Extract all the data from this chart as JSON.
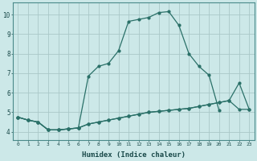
{
  "xlabel": "Humidex (Indice chaleur)",
  "bg_color": "#cce8e8",
  "grid_color": "#aac8c8",
  "line_color": "#2a7068",
  "xlim": [
    -0.5,
    23.5
  ],
  "ylim": [
    3.6,
    10.6
  ],
  "xticks": [
    0,
    1,
    2,
    3,
    4,
    5,
    6,
    7,
    8,
    9,
    10,
    11,
    12,
    13,
    14,
    15,
    16,
    17,
    18,
    19,
    20,
    21,
    22,
    23
  ],
  "yticks": [
    4,
    5,
    6,
    7,
    8,
    9,
    10
  ],
  "curve_bottom_x": [
    0,
    1,
    2,
    3,
    4,
    5,
    6,
    7,
    8,
    9,
    10,
    11,
    12,
    13,
    14,
    15,
    16,
    17,
    18,
    19,
    20,
    21,
    22,
    23
  ],
  "curve_bottom_y": [
    4.75,
    4.6,
    4.5,
    4.1,
    4.1,
    4.15,
    4.2,
    4.4,
    4.5,
    4.6,
    4.7,
    4.8,
    4.9,
    5.0,
    5.05,
    5.1,
    5.15,
    5.2,
    5.3,
    5.4,
    5.5,
    5.6,
    5.15,
    5.15
  ],
  "curve_mid_x": [
    0,
    1,
    2,
    3,
    4,
    5,
    6,
    7,
    8,
    9,
    10,
    11,
    12,
    13,
    14,
    15,
    16,
    17,
    18,
    19,
    20,
    21,
    22,
    23
  ],
  "curve_mid_y": [
    4.75,
    4.6,
    4.5,
    4.1,
    4.1,
    4.15,
    4.2,
    4.4,
    4.5,
    4.6,
    4.7,
    4.8,
    4.9,
    5.0,
    5.05,
    5.1,
    5.15,
    5.2,
    5.3,
    5.4,
    5.5,
    5.6,
    6.5,
    5.15
  ],
  "curve_top_x": [
    0,
    1,
    2,
    3,
    4,
    5,
    6,
    7,
    8,
    9,
    10,
    11,
    12,
    13,
    14,
    15,
    16,
    17,
    18,
    19,
    20
  ],
  "curve_top_y": [
    4.75,
    4.6,
    4.5,
    4.1,
    4.1,
    4.15,
    4.2,
    6.85,
    7.35,
    7.5,
    8.15,
    9.65,
    9.75,
    9.85,
    10.1,
    10.15,
    9.45,
    8.0,
    7.35,
    6.9,
    5.1
  ]
}
